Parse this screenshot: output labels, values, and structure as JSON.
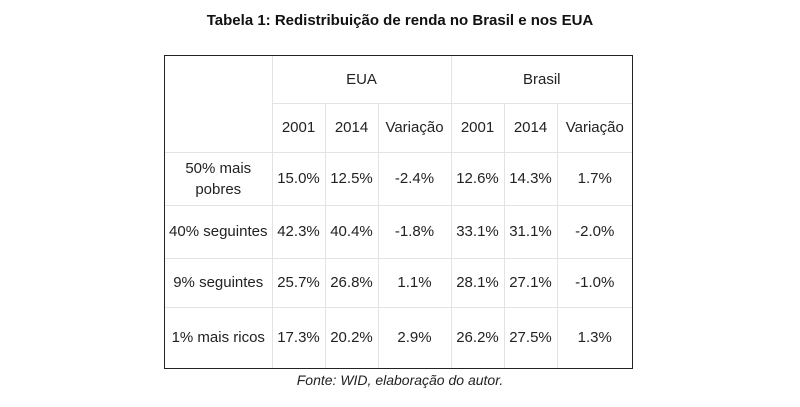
{
  "title": "Tabela 1: Redistribuição de renda no Brasil e nos EUA",
  "table": {
    "groups": [
      "EUA",
      "Brasil"
    ],
    "columns": [
      "2001",
      "2014",
      "Variação",
      "2001",
      "2014",
      "Variação"
    ],
    "rows": [
      {
        "label": "50% mais pobres",
        "values": [
          "15.0%",
          "12.5%",
          "-2.4%",
          "12.6%",
          "14.3%",
          "1.7%"
        ]
      },
      {
        "label": "40% seguintes",
        "values": [
          "42.3%",
          "40.4%",
          "-1.8%",
          "33.1%",
          "31.1%",
          "-2.0%"
        ]
      },
      {
        "label": "9% seguintes",
        "values": [
          "25.7%",
          "26.8%",
          "1.1%",
          "28.1%",
          "27.1%",
          "-1.0%"
        ]
      },
      {
        "label": "1% mais ricos",
        "values": [
          "17.3%",
          "20.2%",
          "2.9%",
          "26.2%",
          "27.5%",
          "1.3%"
        ]
      }
    ]
  },
  "source": "Fonte: WID, elaboração do autor."
}
